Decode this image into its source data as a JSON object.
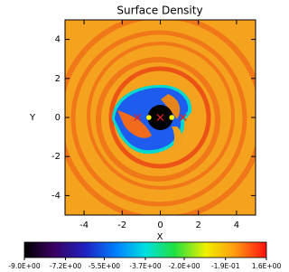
{
  "chart_data": {
    "type": "heatmap",
    "title": "Surface Density",
    "x_label": "X",
    "y_label": "Y",
    "xlim": [
      -5,
      5
    ],
    "ylim": [
      -5,
      5
    ],
    "xticks": [
      -4,
      -2,
      0,
      2,
      4
    ],
    "yticks": [
      -4,
      -2,
      0,
      2,
      4
    ],
    "series": [
      {
        "marker": "x",
        "color": "#e02020",
        "x": [
          -1.2,
          0,
          1.2
        ],
        "y": [
          0,
          0,
          0
        ]
      },
      {
        "marker": "dot",
        "color": "#ffff00",
        "x": [
          -0.6,
          0.6
        ],
        "y": [
          0,
          0
        ]
      }
    ],
    "colorbar": {
      "lim": [
        -9,
        1.6
      ],
      "ticks": [
        {
          "value": -9.0,
          "label": "-9.0E+00"
        },
        {
          "value": -7.2,
          "label": "-7.2E+00"
        },
        {
          "value": -5.5,
          "label": "-5.5E+00"
        },
        {
          "value": -3.7,
          "label": "-3.7E+00"
        },
        {
          "value": -2.0,
          "label": "-2.0E+00"
        },
        {
          "value": -0.19,
          "label": "-1.9E-01"
        },
        {
          "value": 1.6,
          "label": "1.6E+00"
        }
      ]
    }
  }
}
